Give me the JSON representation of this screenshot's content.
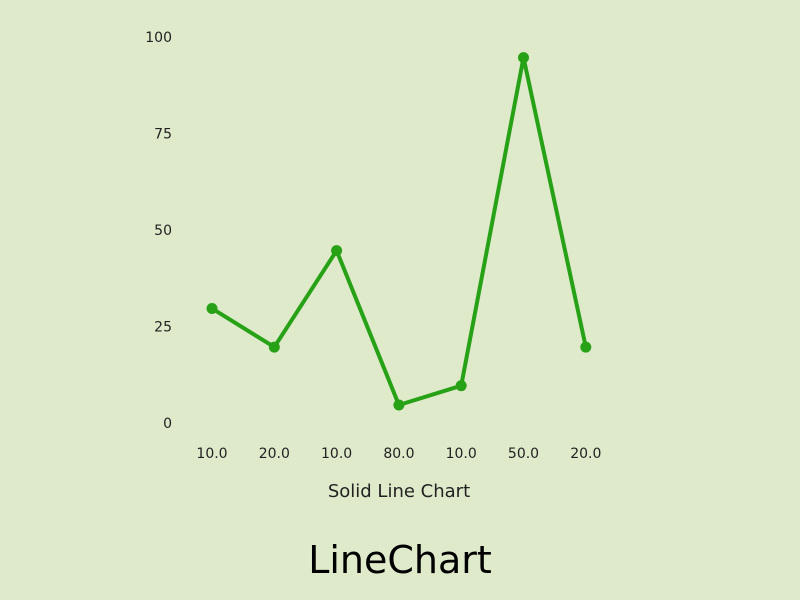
{
  "page": {
    "title": "LineChart"
  },
  "colors": {
    "background": "#dfeacb",
    "line": "#27a116",
    "text": "#222222"
  },
  "chart_data": {
    "type": "line",
    "categories": [
      "10.0",
      "20.0",
      "10.0",
      "80.0",
      "10.0",
      "50.0",
      "20.0"
    ],
    "series": [
      {
        "values": [
          32,
          22,
          47,
          7,
          12,
          97,
          22
        ]
      }
    ],
    "xlabel": "Solid Line Chart",
    "ylabel": "",
    "ylim": [
      0,
      100
    ],
    "yticks": [
      0,
      25,
      50,
      75,
      100
    ],
    "grid": false,
    "legend": "none",
    "markers": true
  }
}
